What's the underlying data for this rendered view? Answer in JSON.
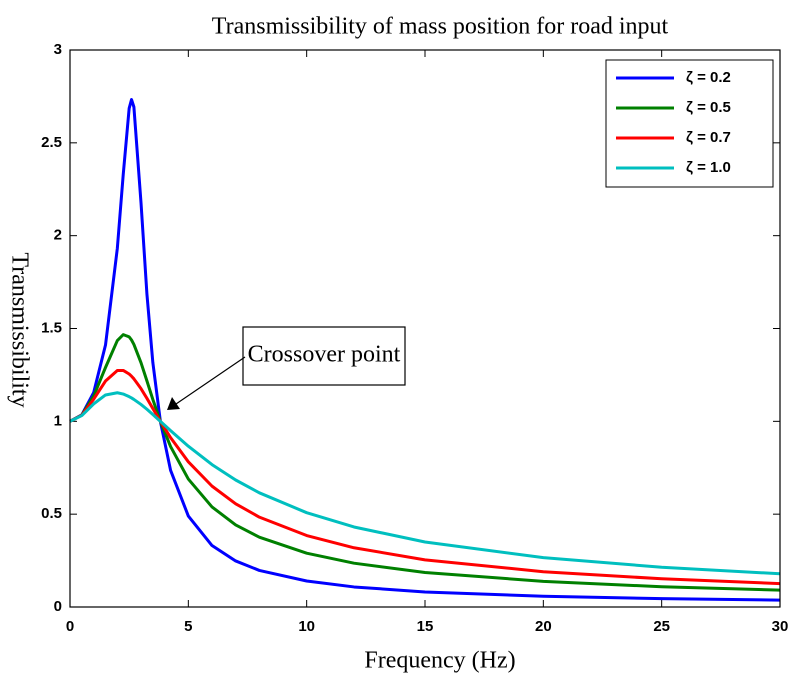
{
  "chart_data": {
    "type": "line",
    "title": "Transmissibility of mass position for road input",
    "xlabel": "Frequency (Hz)",
    "ylabel": "Transmissibility",
    "annotation": "Crossover point",
    "x": [
      0,
      0.5,
      1,
      1.5,
      2,
      2.25,
      2.5,
      2.6,
      2.7,
      3,
      3.25,
      3.5,
      3.82,
      4.25,
      5,
      6,
      7,
      8,
      10,
      12,
      15,
      20,
      25,
      30
    ],
    "series": [
      {
        "name": "ζ = 0.2",
        "color": "#0000ff",
        "values": [
          1,
          1.035,
          1.155,
          1.411,
          1.932,
          2.331,
          2.686,
          2.733,
          2.693,
          2.178,
          1.686,
          1.317,
          0.999,
          0.736,
          0.49,
          0.331,
          0.248,
          0.197,
          0.14,
          0.108,
          0.081,
          0.058,
          0.045,
          0.037
        ]
      },
      {
        "name": "ζ = 0.5",
        "color": "#008000",
        "values": [
          1,
          1.034,
          1.136,
          1.29,
          1.435,
          1.467,
          1.455,
          1.438,
          1.414,
          1.316,
          1.218,
          1.118,
          0.999,
          0.864,
          0.689,
          0.539,
          0.442,
          0.376,
          0.29,
          0.236,
          0.186,
          0.138,
          0.109,
          0.091
        ]
      },
      {
        "name": "ζ = 0.7",
        "color": "#ff0000",
        "values": [
          1,
          1.033,
          1.119,
          1.217,
          1.274,
          1.274,
          1.255,
          1.243,
          1.229,
          1.176,
          1.124,
          1.069,
          1.0,
          0.912,
          0.782,
          0.651,
          0.556,
          0.484,
          0.385,
          0.319,
          0.254,
          0.19,
          0.152,
          0.126
        ]
      },
      {
        "name": "ζ = 1.0",
        "color": "#00bfbf",
        "values": [
          1,
          1.031,
          1.094,
          1.142,
          1.154,
          1.147,
          1.133,
          1.126,
          1.118,
          1.091,
          1.065,
          1.037,
          1.0,
          0.95,
          0.866,
          0.767,
          0.684,
          0.615,
          0.508,
          0.431,
          0.35,
          0.266,
          0.214,
          0.179
        ]
      }
    ],
    "xlim": [
      0,
      30
    ],
    "xticks": [
      0,
      5,
      10,
      15,
      20,
      25,
      30
    ],
    "ylim": [
      0,
      3
    ],
    "yticks": [
      0,
      0.5,
      1,
      1.5,
      2,
      2.5,
      3
    ],
    "legend": "upper right"
  }
}
